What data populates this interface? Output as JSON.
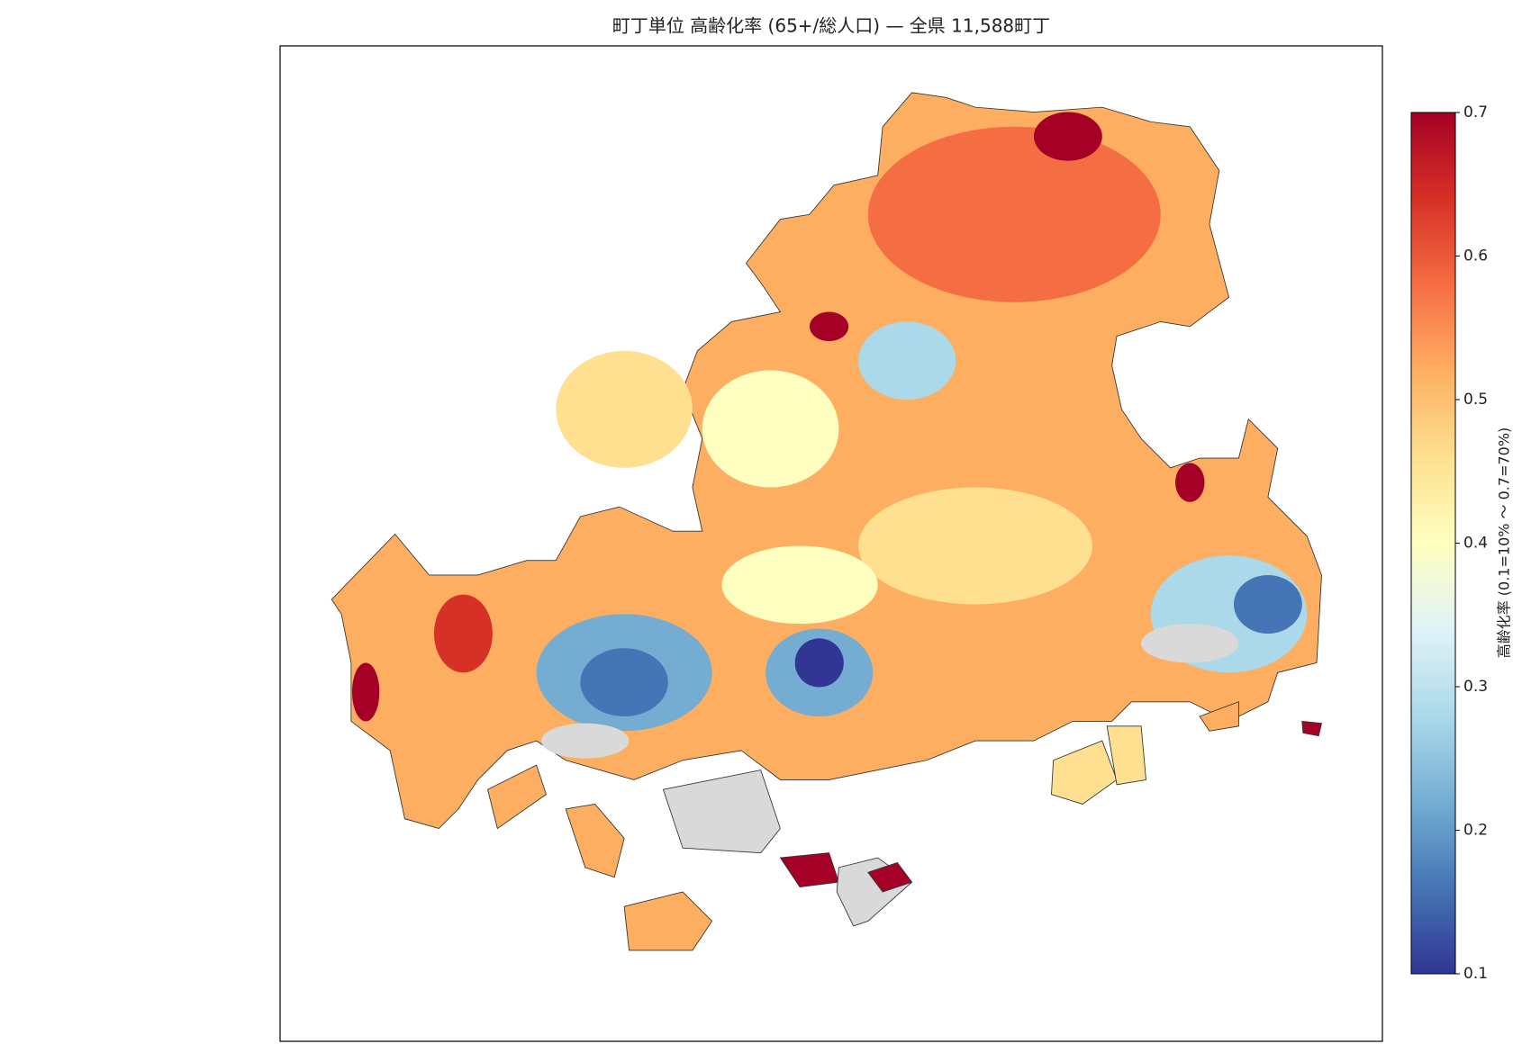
{
  "title": "町丁単位 高齢化率 (65+/総人口) — 全県 11,588町丁",
  "colorbar": {
    "label": "高齢化率 (0.1=10% ～ 0.7=70%)",
    "lim": [
      0.1,
      0.7
    ],
    "ticks": [
      0.1,
      0.2,
      0.3,
      0.4,
      0.5,
      0.6,
      0.7
    ],
    "colors": [
      "#313695",
      "#4575b4",
      "#74add1",
      "#abd9e9",
      "#e0f3f8",
      "#ffffbf",
      "#fee090",
      "#fdae61",
      "#f46d43",
      "#d73027",
      "#a50026"
    ]
  }
}
